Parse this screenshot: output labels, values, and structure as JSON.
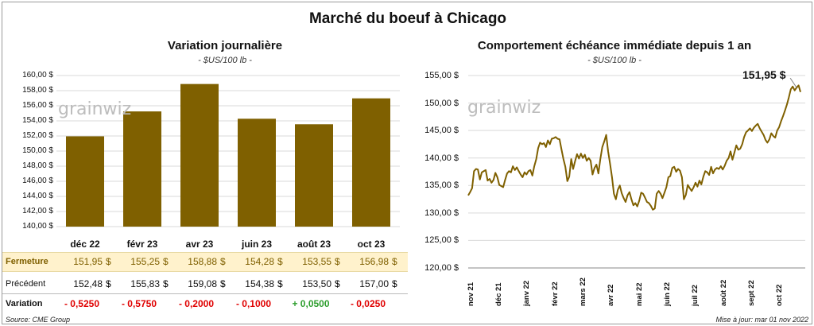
{
  "title": "Marché du boeuf à Chicago",
  "left": {
    "title": "Variation journalière",
    "unit": "- $US/100 lb -",
    "watermark": "grainwiz",
    "rows": {
      "fermeture": "Fermeture",
      "precedent": "Précédent",
      "variation": "Variation"
    },
    "dollar": "$",
    "chart_data": {
      "type": "bar",
      "categories": [
        "déc 22",
        "févr 23",
        "avr 23",
        "juin 23",
        "août 23",
        "oct 23"
      ],
      "values": [
        151.95,
        155.25,
        158.88,
        154.28,
        153.55,
        156.98
      ],
      "ylim": [
        140,
        160
      ],
      "yticks": [
        "140,00 $",
        "142,00 $",
        "144,00 $",
        "146,00 $",
        "148,00 $",
        "150,00 $",
        "152,00 $",
        "154,00 $",
        "156,00 $",
        "158,00 $",
        "160,00 $"
      ],
      "color": "#7f6000"
    },
    "table": {
      "fermeture": [
        "151,95",
        "155,25",
        "158,88",
        "154,28",
        "153,55",
        "156,98"
      ],
      "precedent": [
        "152,48",
        "155,83",
        "159,08",
        "154,38",
        "153,50",
        "157,00"
      ],
      "variation": [
        "- 0,5250",
        "- 0,5750",
        "- 0,2000",
        "- 0,1000",
        "+ 0,0500",
        "- 0,0250"
      ],
      "variation_colors": [
        "#e00000",
        "#e00000",
        "#e00000",
        "#e00000",
        "#2e9e2e",
        "#e00000"
      ]
    }
  },
  "right": {
    "title": "Comportement  échéance immédiate depuis 1 an",
    "unit": "- $US/100 lb -",
    "watermark": "grainwiz",
    "last_label": "151,95 $",
    "chart_data": {
      "type": "line",
      "ylim": [
        120,
        155
      ],
      "yticks": [
        "120,00 $",
        "125,00 $",
        "130,00 $",
        "135,00 $",
        "140,00 $",
        "145,00 $",
        "150,00 $",
        "155,00 $"
      ],
      "xticks": [
        "nov 21",
        "déc 21",
        "janv 22",
        "févr 22",
        "mars 22",
        "avr 22",
        "mai 22",
        "juin 22",
        "juil 22",
        "août 22",
        "sept 22",
        "oct 22"
      ],
      "color": "#7f6000",
      "values": [
        133.2,
        133.8,
        134.5,
        137.6,
        138.0,
        137.9,
        136.1,
        137.4,
        137.6,
        137.8,
        135.9,
        136.2,
        135.5,
        136.0,
        137.3,
        136.5,
        135.1,
        134.9,
        134.7,
        136.0,
        137.2,
        137.6,
        137.4,
        138.5,
        137.8,
        138.3,
        137.6,
        137.0,
        136.5,
        137.4,
        137.0,
        137.6,
        137.8,
        136.8,
        138.5,
        139.8,
        141.8,
        142.8,
        142.5,
        142.7,
        142.0,
        143.2,
        142.5,
        143.5,
        143.6,
        143.8,
        143.5,
        143.4,
        141.6,
        139.8,
        138.4,
        135.8,
        136.6,
        139.8,
        138.0,
        139.4,
        140.7,
        139.9,
        140.8,
        140.0,
        140.6,
        139.5,
        140.0,
        139.5,
        137.0,
        138.2,
        138.8,
        137.2,
        139.8,
        142.0,
        143.0,
        144.2,
        141.2,
        139.0,
        136.5,
        133.5,
        132.5,
        134.2,
        135.0,
        133.6,
        132.7,
        132.0,
        133.2,
        133.8,
        132.5,
        131.4,
        131.8,
        131.2,
        132.2,
        133.7,
        133.5,
        132.8,
        132.0,
        131.8,
        131.3,
        130.6,
        130.8,
        133.5,
        134.0,
        133.5,
        132.7,
        133.7,
        134.7,
        136.5,
        136.7,
        138.2,
        138.4,
        137.5,
        138.0,
        137.7,
        136.5,
        132.5,
        133.3,
        135.1,
        134.5,
        134.0,
        134.7,
        135.5,
        134.8,
        135.9,
        135.2,
        136.6,
        137.6,
        137.4,
        136.9,
        138.4,
        137.2,
        137.9,
        138.2,
        138.0,
        138.5,
        137.9,
        138.6,
        139.5,
        140.0,
        141.2,
        139.7,
        141.0,
        142.3,
        141.5,
        141.7,
        142.5,
        143.8,
        144.7,
        145.0,
        145.4,
        144.9,
        145.5,
        145.9,
        146.2,
        145.4,
        144.8,
        144.2,
        143.3,
        142.8,
        143.4,
        144.5,
        144.0,
        143.7,
        145.0,
        145.6,
        146.7,
        147.6,
        148.6,
        149.7,
        151.0,
        152.5,
        153.0,
        152.3,
        152.8,
        153.2,
        152.0
      ]
    }
  },
  "footer": {
    "source": "Source: CME Group",
    "updated": "Mise à jour: mar 01 nov 2022"
  }
}
